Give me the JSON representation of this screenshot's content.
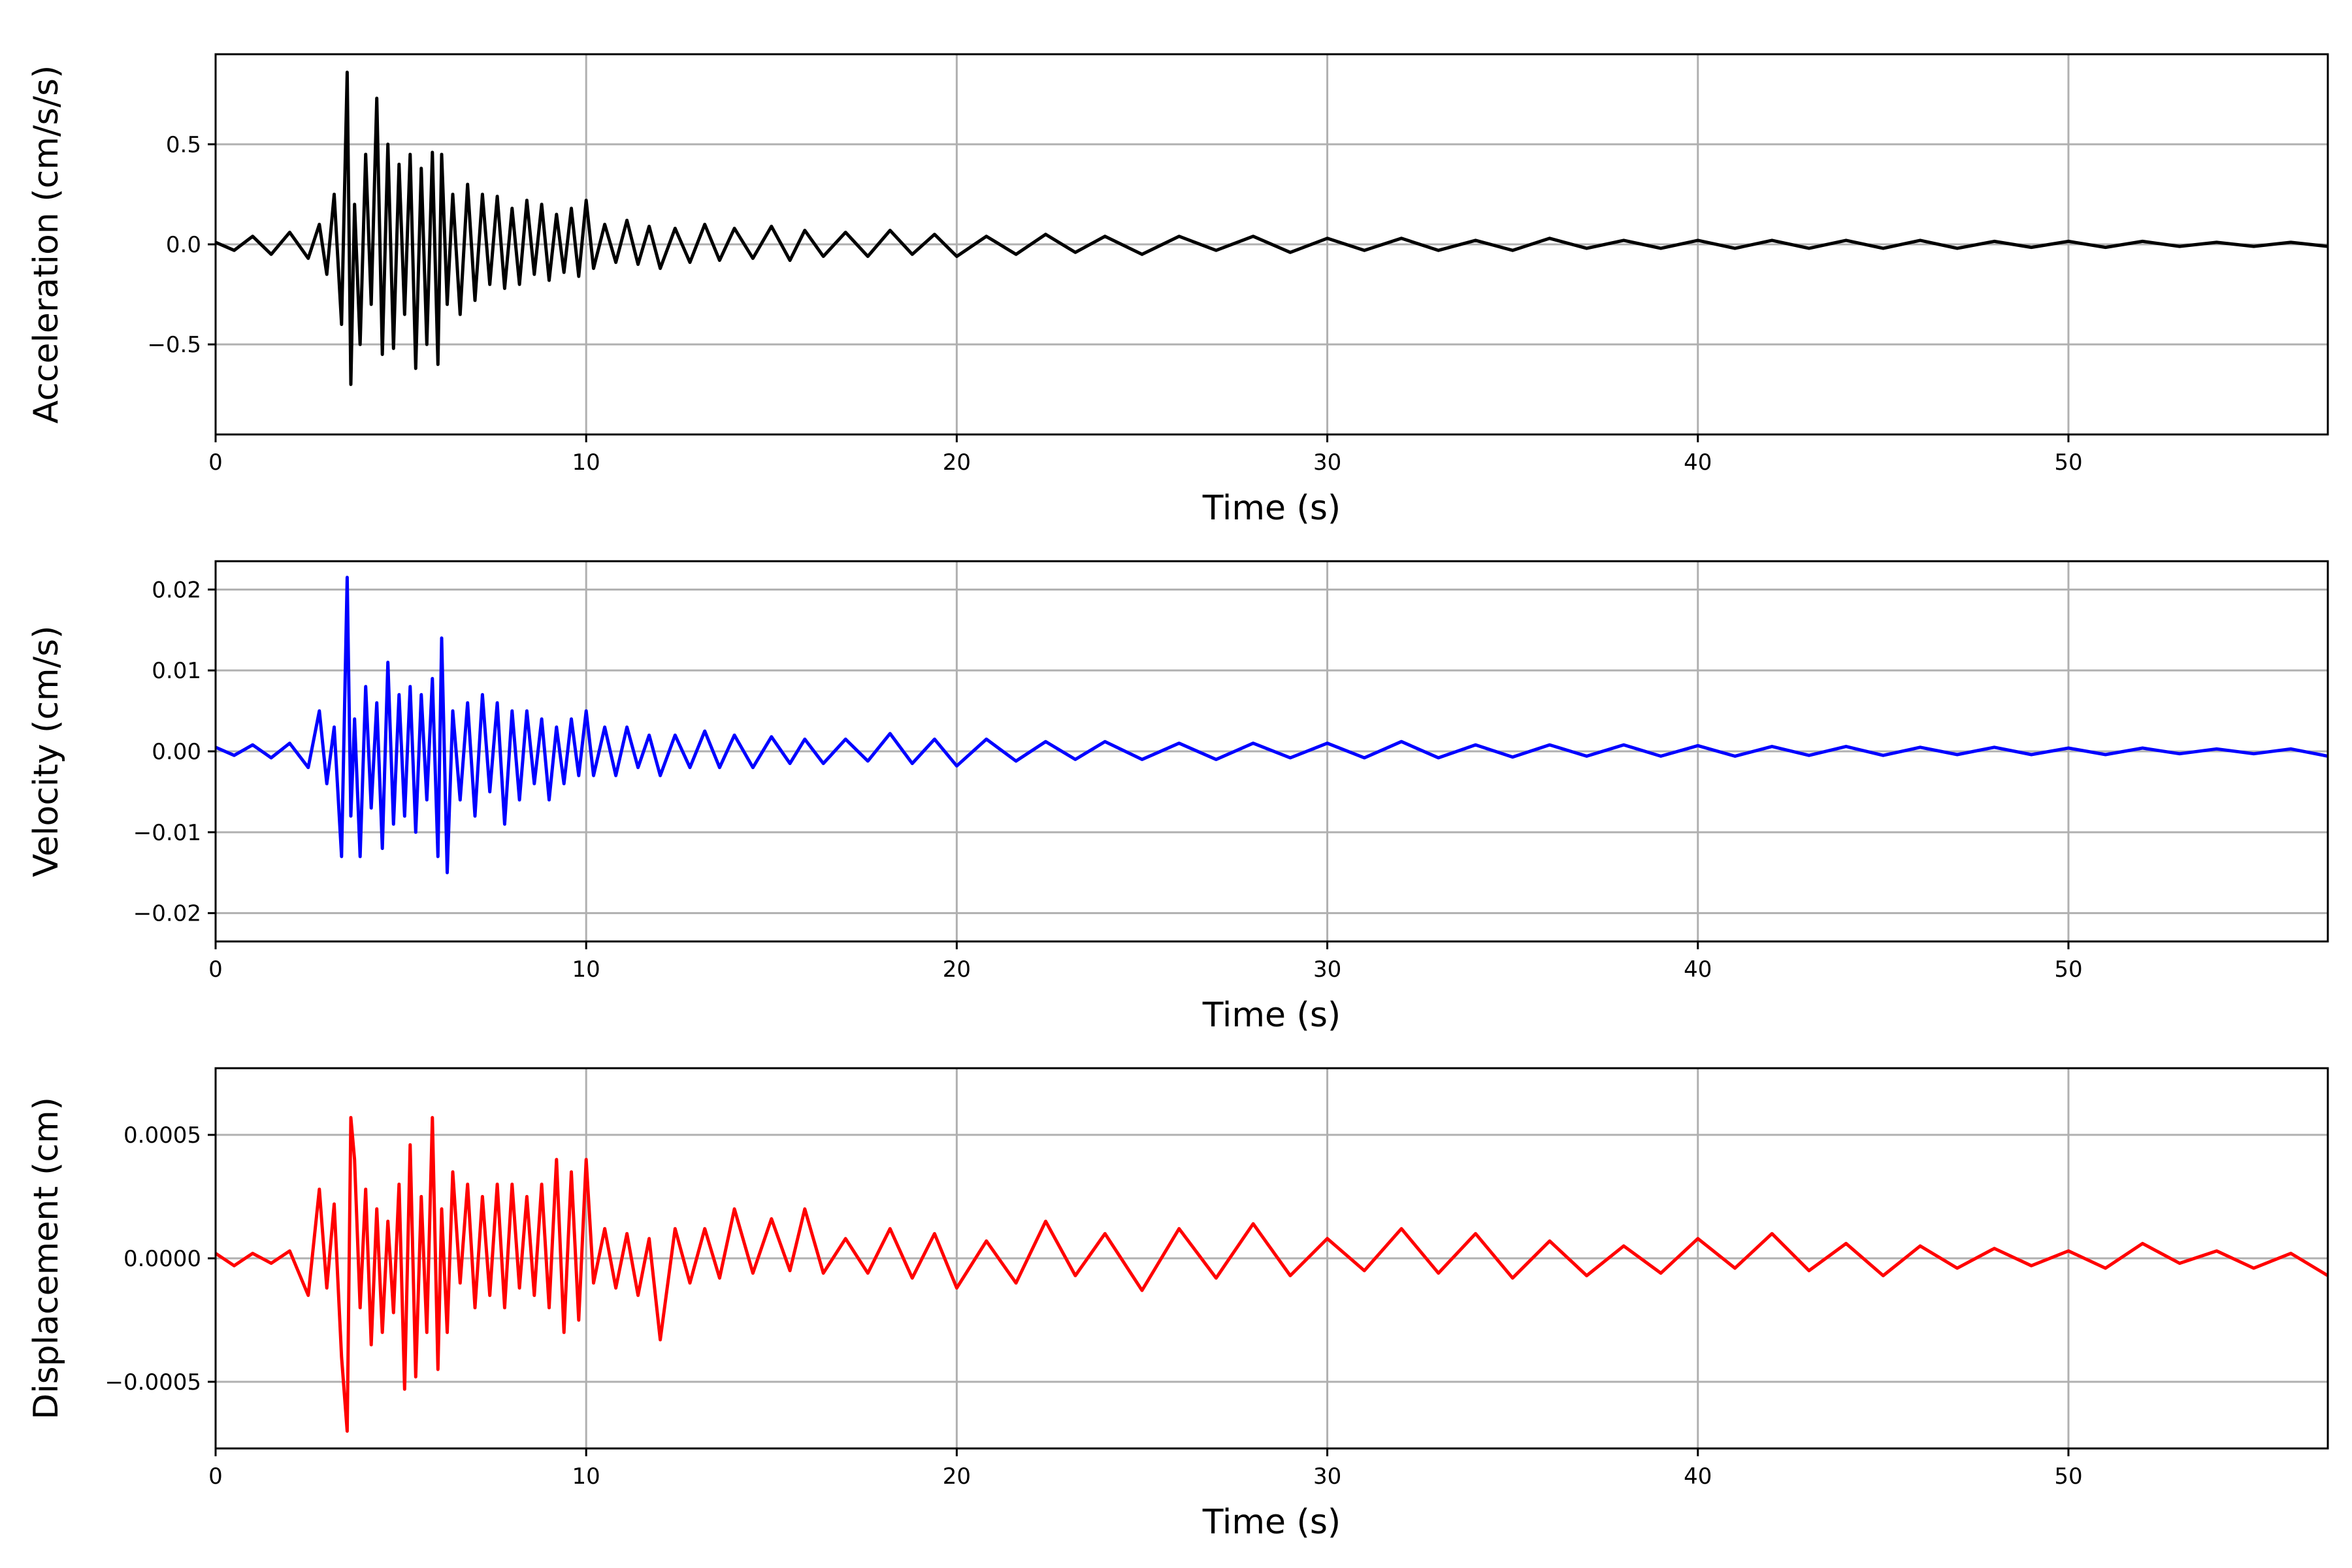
{
  "figure": {
    "background": "#ffffff",
    "grid": true,
    "grid_color": "#b0b0b0"
  },
  "chart_data": [
    {
      "type": "line",
      "title": "",
      "xlabel": "Time (s)",
      "ylabel": "Acceleration (cm/s/s)",
      "xlim": [
        0,
        57
      ],
      "ylim": [
        -0.95,
        0.95
      ],
      "xticks": [
        0,
        10,
        20,
        30,
        40,
        50
      ],
      "xtick_labels": [
        "0",
        "10",
        "20",
        "30",
        "40",
        "50"
      ],
      "yticks": [
        -0.5,
        0.0,
        0.5
      ],
      "ytick_labels": [
        "−0.5",
        "0.0",
        "0.5"
      ],
      "grid": true,
      "series": [
        {
          "color": "#000000",
          "x": [
            0,
            0.5,
            1,
            1.5,
            2,
            2.5,
            2.8,
            3.0,
            3.2,
            3.4,
            3.55,
            3.65,
            3.75,
            3.9,
            4.05,
            4.2,
            4.35,
            4.5,
            4.65,
            4.8,
            4.95,
            5.1,
            5.25,
            5.4,
            5.55,
            5.7,
            5.85,
            6.0,
            6.1,
            6.25,
            6.4,
            6.6,
            6.8,
            7.0,
            7.2,
            7.4,
            7.6,
            7.8,
            8.0,
            8.2,
            8.4,
            8.6,
            8.8,
            9.0,
            9.2,
            9.4,
            9.6,
            9.8,
            10.0,
            10.2,
            10.5,
            10.8,
            11.1,
            11.4,
            11.7,
            12.0,
            12.4,
            12.8,
            13.2,
            13.6,
            14.0,
            14.5,
            15.0,
            15.5,
            15.9,
            16.4,
            17.0,
            17.6,
            18.2,
            18.8,
            19.4,
            20.0,
            20.8,
            21.6,
            22.4,
            23.2,
            24.0,
            25.0,
            26.0,
            27.0,
            28.0,
            29.0,
            30.0,
            31.0,
            32.0,
            33.0,
            34.0,
            35.0,
            36.0,
            37.0,
            38.0,
            39.0,
            40.0,
            41.0,
            42.0,
            43.0,
            44.0,
            45.0,
            46.0,
            47.0,
            48.0,
            49.0,
            50.0,
            51.0,
            52.0,
            53.0,
            54.0,
            55.0,
            56.0,
            57.0
          ],
          "y": [
            0.01,
            -0.03,
            0.04,
            -0.05,
            0.06,
            -0.07,
            0.1,
            -0.15,
            0.25,
            -0.4,
            0.86,
            -0.7,
            0.2,
            -0.5,
            0.45,
            -0.3,
            0.73,
            -0.55,
            0.5,
            -0.52,
            0.4,
            -0.35,
            0.45,
            -0.62,
            0.38,
            -0.5,
            0.46,
            -0.6,
            0.45,
            -0.3,
            0.25,
            -0.35,
            0.3,
            -0.28,
            0.25,
            -0.2,
            0.24,
            -0.22,
            0.18,
            -0.2,
            0.22,
            -0.15,
            0.2,
            -0.18,
            0.15,
            -0.14,
            0.18,
            -0.16,
            0.22,
            -0.12,
            0.1,
            -0.09,
            0.12,
            -0.1,
            0.09,
            -0.12,
            0.08,
            -0.09,
            0.1,
            -0.08,
            0.08,
            -0.07,
            0.09,
            -0.08,
            0.07,
            -0.06,
            0.06,
            -0.06,
            0.07,
            -0.05,
            0.05,
            -0.06,
            0.04,
            -0.05,
            0.05,
            -0.04,
            0.04,
            -0.05,
            0.04,
            -0.03,
            0.04,
            -0.04,
            0.03,
            -0.03,
            0.03,
            -0.03,
            0.02,
            -0.03,
            0.03,
            -0.02,
            0.02,
            -0.02,
            0.02,
            -0.02,
            0.02,
            -0.02,
            0.02,
            -0.02,
            0.02,
            -0.02,
            0.015,
            -0.015,
            0.015,
            -0.015,
            0.015,
            -0.01,
            0.01,
            -0.01,
            0.01,
            -0.01
          ]
        }
      ]
    },
    {
      "type": "line",
      "title": "",
      "xlabel": "Time (s)",
      "ylabel": "Velocity (cm/s)",
      "xlim": [
        0,
        57
      ],
      "ylim": [
        -0.0235,
        0.0235
      ],
      "xticks": [
        0,
        10,
        20,
        30,
        40,
        50
      ],
      "xtick_labels": [
        "0",
        "10",
        "20",
        "30",
        "40",
        "50"
      ],
      "yticks": [
        -0.02,
        -0.01,
        0.0,
        0.01,
        0.02
      ],
      "ytick_labels": [
        "−0.02",
        "−0.01",
        "0.00",
        "0.01",
        "0.02"
      ],
      "grid": true,
      "series": [
        {
          "color": "#0000ff",
          "x": [
            0,
            0.5,
            1,
            1.5,
            2,
            2.5,
            2.8,
            3.0,
            3.2,
            3.4,
            3.55,
            3.65,
            3.75,
            3.9,
            4.05,
            4.2,
            4.35,
            4.5,
            4.65,
            4.8,
            4.95,
            5.1,
            5.25,
            5.4,
            5.55,
            5.7,
            5.85,
            6.0,
            6.1,
            6.25,
            6.4,
            6.6,
            6.8,
            7.0,
            7.2,
            7.4,
            7.6,
            7.8,
            8.0,
            8.2,
            8.4,
            8.6,
            8.8,
            9.0,
            9.2,
            9.4,
            9.6,
            9.8,
            10.0,
            10.2,
            10.5,
            10.8,
            11.1,
            11.4,
            11.7,
            12.0,
            12.4,
            12.8,
            13.2,
            13.6,
            14.0,
            14.5,
            15.0,
            15.5,
            15.9,
            16.4,
            17.0,
            17.6,
            18.2,
            18.8,
            19.4,
            20.0,
            20.8,
            21.6,
            22.4,
            23.2,
            24.0,
            25.0,
            26.0,
            27.0,
            28.0,
            29.0,
            30.0,
            31.0,
            32.0,
            33.0,
            34.0,
            35.0,
            36.0,
            37.0,
            38.0,
            39.0,
            40.0,
            41.0,
            42.0,
            43.0,
            44.0,
            45.0,
            46.0,
            47.0,
            48.0,
            49.0,
            50.0,
            51.0,
            52.0,
            53.0,
            54.0,
            55.0,
            56.0,
            57.0
          ],
          "y": [
            0.0005,
            -0.0005,
            0.0008,
            -0.0008,
            0.001,
            -0.002,
            0.005,
            -0.004,
            0.003,
            -0.013,
            0.0215,
            -0.008,
            0.004,
            -0.013,
            0.008,
            -0.007,
            0.006,
            -0.012,
            0.011,
            -0.009,
            0.007,
            -0.008,
            0.008,
            -0.01,
            0.007,
            -0.006,
            0.009,
            -0.013,
            0.014,
            -0.015,
            0.005,
            -0.006,
            0.006,
            -0.008,
            0.007,
            -0.005,
            0.006,
            -0.009,
            0.005,
            -0.006,
            0.005,
            -0.004,
            0.004,
            -0.006,
            0.003,
            -0.004,
            0.004,
            -0.003,
            0.005,
            -0.003,
            0.003,
            -0.003,
            0.003,
            -0.002,
            0.002,
            -0.003,
            0.002,
            -0.002,
            0.0025,
            -0.002,
            0.002,
            -0.002,
            0.0018,
            -0.0015,
            0.0015,
            -0.0015,
            0.0015,
            -0.0012,
            0.0022,
            -0.0015,
            0.0015,
            -0.0018,
            0.0015,
            -0.0012,
            0.0012,
            -0.001,
            0.0012,
            -0.001,
            0.001,
            -0.001,
            0.001,
            -0.0008,
            0.001,
            -0.0008,
            0.0012,
            -0.0008,
            0.0008,
            -0.0007,
            0.0008,
            -0.0006,
            0.0008,
            -0.0006,
            0.0007,
            -0.0006,
            0.0006,
            -0.0005,
            0.0006,
            -0.0005,
            0.0005,
            -0.0004,
            0.0005,
            -0.0004,
            0.0004,
            -0.0004,
            0.0004,
            -0.0003,
            0.0003,
            -0.0003,
            0.0003,
            -0.0006
          ]
        }
      ]
    },
    {
      "type": "line",
      "title": "",
      "xlabel": "Time (s)",
      "ylabel": "Displacement (cm)",
      "xlim": [
        0,
        57
      ],
      "ylim": [
        -0.00077,
        0.00077
      ],
      "xticks": [
        0,
        10,
        20,
        30,
        40,
        50
      ],
      "xtick_labels": [
        "0",
        "10",
        "20",
        "30",
        "40",
        "50"
      ],
      "yticks": [
        -0.0005,
        0.0,
        0.0005
      ],
      "ytick_labels": [
        "−0.0005",
        "0.0000",
        "0.0005"
      ],
      "grid": true,
      "series": [
        {
          "color": "#ff0000",
          "x": [
            0,
            0.5,
            1,
            1.5,
            2,
            2.5,
            2.8,
            3.0,
            3.2,
            3.4,
            3.55,
            3.65,
            3.75,
            3.9,
            4.05,
            4.2,
            4.35,
            4.5,
            4.65,
            4.8,
            4.95,
            5.1,
            5.25,
            5.4,
            5.55,
            5.7,
            5.85,
            6.0,
            6.1,
            6.25,
            6.4,
            6.6,
            6.8,
            7.0,
            7.2,
            7.4,
            7.6,
            7.8,
            8.0,
            8.2,
            8.4,
            8.6,
            8.8,
            9.0,
            9.2,
            9.4,
            9.6,
            9.8,
            10.0,
            10.2,
            10.5,
            10.8,
            11.1,
            11.4,
            11.7,
            12.0,
            12.4,
            12.8,
            13.2,
            13.6,
            14.0,
            14.5,
            15.0,
            15.5,
            15.9,
            16.4,
            17.0,
            17.6,
            18.2,
            18.8,
            19.4,
            20.0,
            20.8,
            21.6,
            22.4,
            23.2,
            24.0,
            25.0,
            26.0,
            27.0,
            28.0,
            29.0,
            30.0,
            31.0,
            32.0,
            33.0,
            34.0,
            35.0,
            36.0,
            37.0,
            38.0,
            39.0,
            40.0,
            41.0,
            42.0,
            43.0,
            44.0,
            45.0,
            46.0,
            47.0,
            48.0,
            49.0,
            50.0,
            51.0,
            52.0,
            53.0,
            54.0,
            55.0,
            56.0,
            57.0
          ],
          "y": [
            2e-05,
            -3e-05,
            2e-05,
            -2e-05,
            3e-05,
            -0.00015,
            0.00028,
            -0.00012,
            0.00022,
            -0.0004,
            -0.0007,
            0.00057,
            0.0004,
            -0.0002,
            0.00028,
            -0.00035,
            0.0002,
            -0.0003,
            0.00015,
            -0.00022,
            0.0003,
            -0.00053,
            0.00046,
            -0.00048,
            0.00025,
            -0.0003,
            0.00057,
            -0.00045,
            0.0002,
            -0.0003,
            0.00035,
            -0.0001,
            0.0003,
            -0.0002,
            0.00025,
            -0.00015,
            0.0003,
            -0.0002,
            0.0003,
            -0.00012,
            0.00025,
            -0.00015,
            0.0003,
            -0.0002,
            0.0004,
            -0.0003,
            0.00035,
            -0.00025,
            0.0004,
            -0.0001,
            0.00012,
            -0.00012,
            0.0001,
            -0.00015,
            8e-05,
            -0.00033,
            0.00012,
            -0.0001,
            0.00012,
            -8e-05,
            0.0002,
            -6e-05,
            0.00016,
            -5e-05,
            0.0002,
            -6e-05,
            8e-05,
            -6e-05,
            0.00012,
            -8e-05,
            0.0001,
            -0.00012,
            7e-05,
            -0.0001,
            0.00015,
            -7e-05,
            0.0001,
            -0.00013,
            0.00012,
            -8e-05,
            0.00014,
            -7e-05,
            8e-05,
            -5e-05,
            0.00012,
            -6e-05,
            0.0001,
            -8e-05,
            7e-05,
            -7e-05,
            5e-05,
            -6e-05,
            8e-05,
            -4e-05,
            0.0001,
            -5e-05,
            6e-05,
            -7e-05,
            5e-05,
            -4e-05,
            4e-05,
            -3e-05,
            3e-05,
            -4e-05,
            6e-05,
            -2e-05,
            3e-05,
            -4e-05,
            2e-05,
            -7e-05
          ]
        }
      ]
    }
  ]
}
